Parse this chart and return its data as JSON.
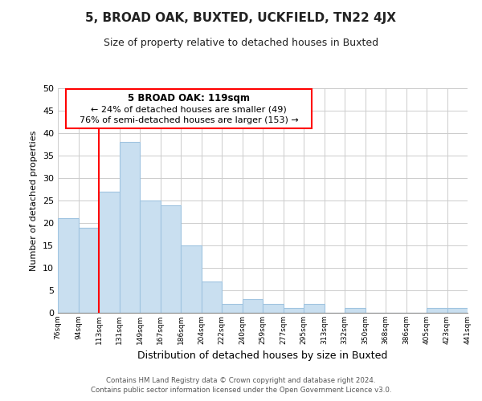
{
  "title": "5, BROAD OAK, BUXTED, UCKFIELD, TN22 4JX",
  "subtitle": "Size of property relative to detached houses in Buxted",
  "xlabel": "Distribution of detached houses by size in Buxted",
  "ylabel": "Number of detached properties",
  "bar_labels": [
    "76sqm",
    "94sqm",
    "113sqm",
    "131sqm",
    "149sqm",
    "167sqm",
    "186sqm",
    "204sqm",
    "222sqm",
    "240sqm",
    "259sqm",
    "277sqm",
    "295sqm",
    "313sqm",
    "332sqm",
    "350sqm",
    "368sqm",
    "386sqm",
    "405sqm",
    "423sqm",
    "441sqm"
  ],
  "bar_values": [
    21,
    19,
    27,
    38,
    25,
    24,
    15,
    7,
    2,
    3,
    2,
    1,
    2,
    0,
    1,
    0,
    0,
    0,
    1,
    1
  ],
  "bar_color": "#c9dff0",
  "bar_edge_color": "#a0c4e0",
  "vline_x_index": 2,
  "vline_color": "red",
  "ylim": [
    0,
    50
  ],
  "yticks": [
    0,
    5,
    10,
    15,
    20,
    25,
    30,
    35,
    40,
    45,
    50
  ],
  "annotation_title": "5 BROAD OAK: 119sqm",
  "annotation_line1": "← 24% of detached houses are smaller (49)",
  "annotation_line2": "76% of semi-detached houses are larger (153) →",
  "footer1": "Contains HM Land Registry data © Crown copyright and database right 2024.",
  "footer2": "Contains public sector information licensed under the Open Government Licence v3.0.",
  "background_color": "#ffffff",
  "grid_color": "#cccccc"
}
